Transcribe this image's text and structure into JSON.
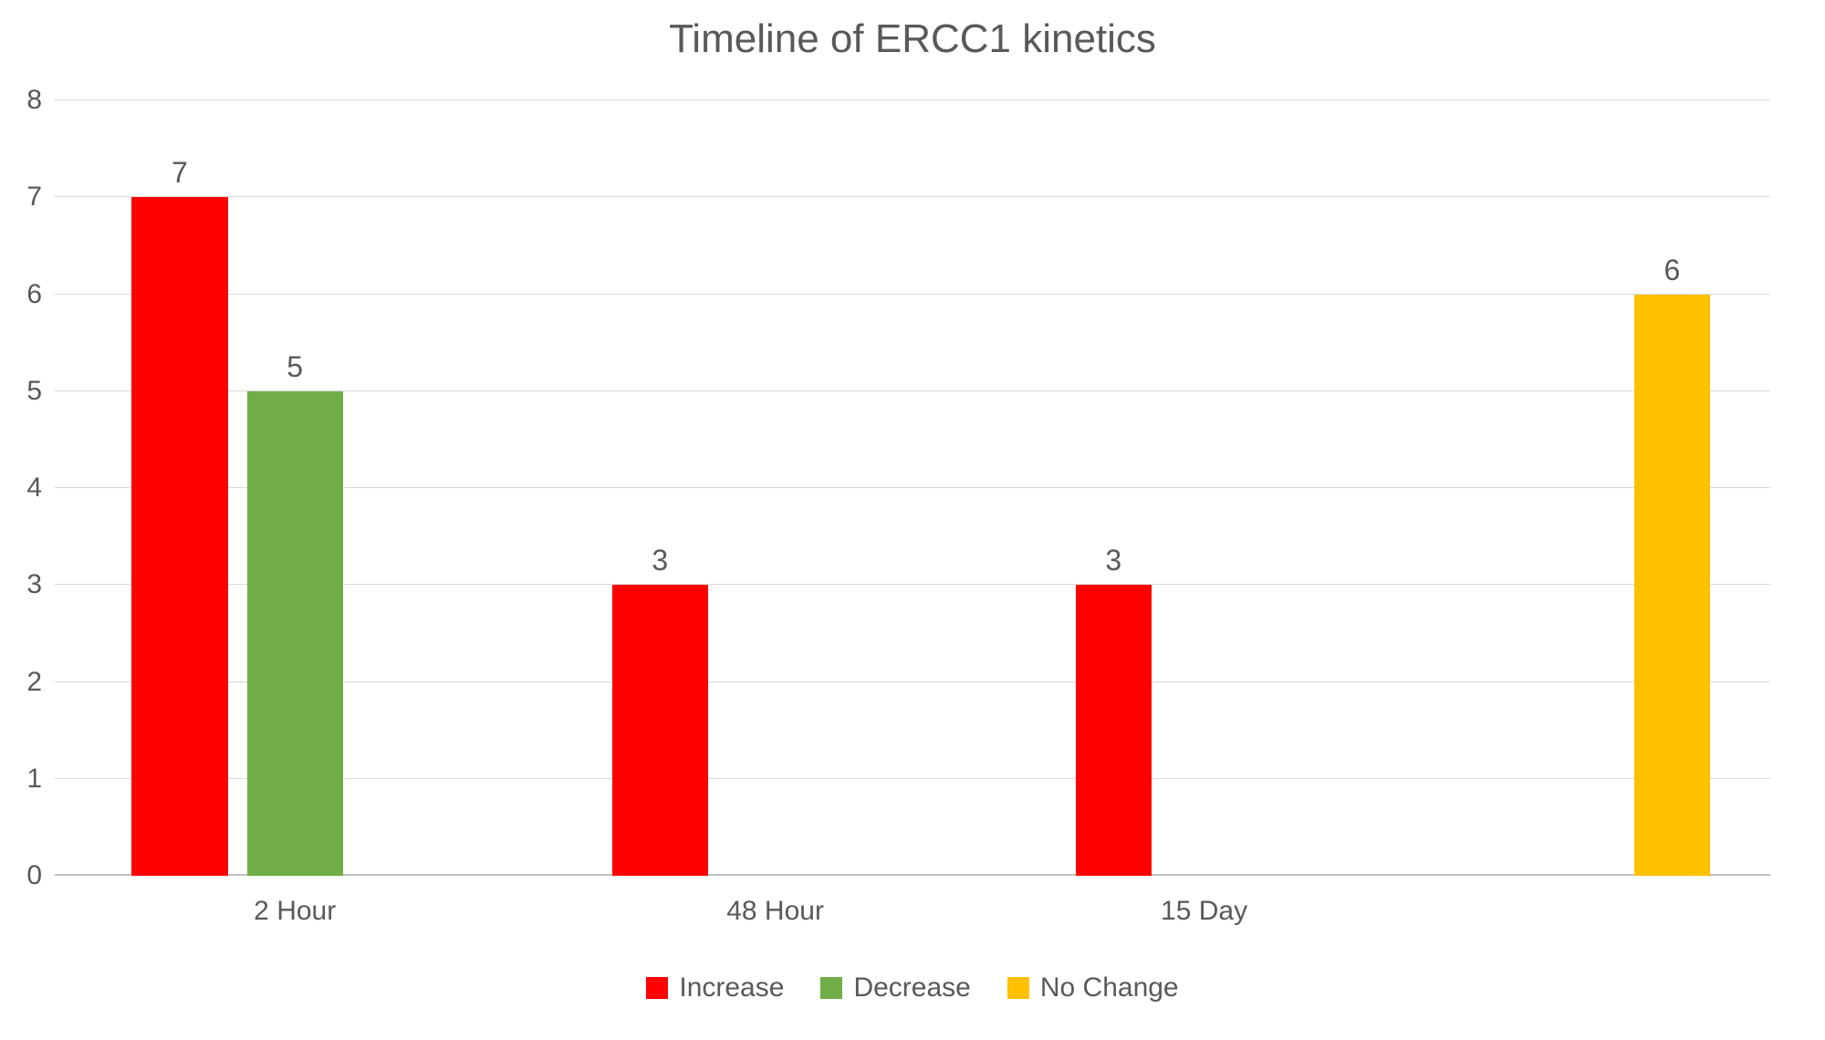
{
  "chart": {
    "type": "bar",
    "title": "Timeline of ERCC1 kinetics",
    "title_fontsize": 44,
    "title_color": "#595959",
    "background_color": "#ffffff",
    "grid_color": "#d9d9d9",
    "axis_line_color": "#bfbfbf",
    "tick_label_color": "#595959",
    "tick_fontsize": 30,
    "cat_fontsize": 30,
    "data_label_fontsize": 32,
    "ylim": [
      0,
      8
    ],
    "ytick_step": 1,
    "bar_slot_width_pct": 20,
    "bar_gap_pct": 4,
    "categories": [
      {
        "label": "2 Hour",
        "width_pct": 28
      },
      {
        "label": "48 Hour",
        "width_pct": 28
      },
      {
        "label": "15 Day",
        "width_pct": 22
      },
      {
        "label": "",
        "width_pct": 22
      }
    ],
    "series": [
      {
        "name": "Increase",
        "color": "#ff0000",
        "values": [
          7,
          3,
          3,
          null
        ]
      },
      {
        "name": "Decrease",
        "color": "#70ad47",
        "values": [
          5,
          null,
          null,
          null
        ]
      },
      {
        "name": "No Change",
        "color": "#ffc000",
        "values": [
          null,
          null,
          null,
          6
        ]
      }
    ],
    "legend_fontsize": 30
  }
}
